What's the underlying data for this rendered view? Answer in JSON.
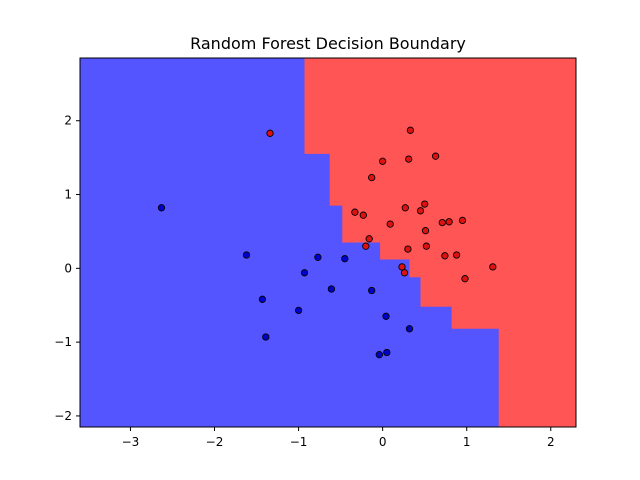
{
  "chart_data": {
    "type": "scatter",
    "title": "Random Forest Decision Boundary",
    "xlabel": "",
    "ylabel": "",
    "xlim": [
      -3.6,
      2.3
    ],
    "ylim": [
      -2.15,
      2.85
    ],
    "xticks": [
      -3,
      -2,
      -1,
      0,
      1,
      2
    ],
    "xtick_labels": [
      "−3",
      "−2",
      "−1",
      "0",
      "1",
      "2"
    ],
    "yticks": [
      -2,
      -1,
      0,
      1,
      2
    ],
    "ytick_labels": [
      "−2",
      "−1",
      "0",
      "1",
      "2"
    ],
    "grid": false,
    "colors": {
      "class_0_region": "#5555ff",
      "class_1_region": "#ff5555",
      "class_0_point": "#0000cc",
      "class_1_point": "#dd1111",
      "point_edge": "#000000"
    },
    "decision_boundary": {
      "class_0_region": "blue",
      "class_1_region": "red",
      "boundary_path": [
        [
          -0.93,
          2.85
        ],
        [
          -0.93,
          1.55
        ],
        [
          -0.63,
          1.55
        ],
        [
          -0.63,
          0.85
        ],
        [
          -0.48,
          0.85
        ],
        [
          -0.48,
          0.35
        ],
        [
          -0.03,
          0.35
        ],
        [
          -0.03,
          0.12
        ],
        [
          0.32,
          0.12
        ],
        [
          0.32,
          -0.12
        ],
        [
          0.45,
          -0.12
        ],
        [
          0.45,
          -0.52
        ],
        [
          0.82,
          -0.52
        ],
        [
          0.82,
          -0.82
        ],
        [
          1.38,
          -0.82
        ],
        [
          1.38,
          -2.15
        ]
      ]
    },
    "series": [
      {
        "class": 0,
        "color": "blue",
        "points": [
          [
            -2.63,
            0.82
          ],
          [
            -1.62,
            0.18
          ],
          [
            -1.43,
            -0.42
          ],
          [
            -1.39,
            -0.93
          ],
          [
            -0.93,
            -0.06
          ],
          [
            -1.0,
            -0.57
          ],
          [
            -0.77,
            0.15
          ],
          [
            -0.61,
            -0.28
          ],
          [
            -0.45,
            0.13
          ],
          [
            -0.13,
            -0.3
          ],
          [
            0.04,
            -0.65
          ],
          [
            0.32,
            -0.82
          ],
          [
            -0.04,
            -1.17
          ],
          [
            0.05,
            -1.14
          ]
        ]
      },
      {
        "class": 1,
        "color": "red",
        "points": [
          [
            -1.34,
            1.83
          ],
          [
            0.33,
            1.87
          ],
          [
            0.63,
            1.52
          ],
          [
            0.31,
            1.48
          ],
          [
            0.0,
            1.45
          ],
          [
            -0.13,
            1.23
          ],
          [
            -0.33,
            0.76
          ],
          [
            -0.23,
            0.72
          ],
          [
            0.27,
            0.82
          ],
          [
            0.45,
            0.78
          ],
          [
            0.5,
            0.87
          ],
          [
            0.09,
            0.6
          ],
          [
            0.71,
            0.62
          ],
          [
            0.79,
            0.63
          ],
          [
            0.95,
            0.65
          ],
          [
            0.51,
            0.51
          ],
          [
            -0.16,
            0.4
          ],
          [
            -0.2,
            0.3
          ],
          [
            0.3,
            0.26
          ],
          [
            0.52,
            0.3
          ],
          [
            0.74,
            0.17
          ],
          [
            0.88,
            0.18
          ],
          [
            0.23,
            0.02
          ],
          [
            0.26,
            -0.06
          ],
          [
            0.98,
            -0.14
          ],
          [
            1.31,
            0.02
          ]
        ]
      }
    ]
  }
}
